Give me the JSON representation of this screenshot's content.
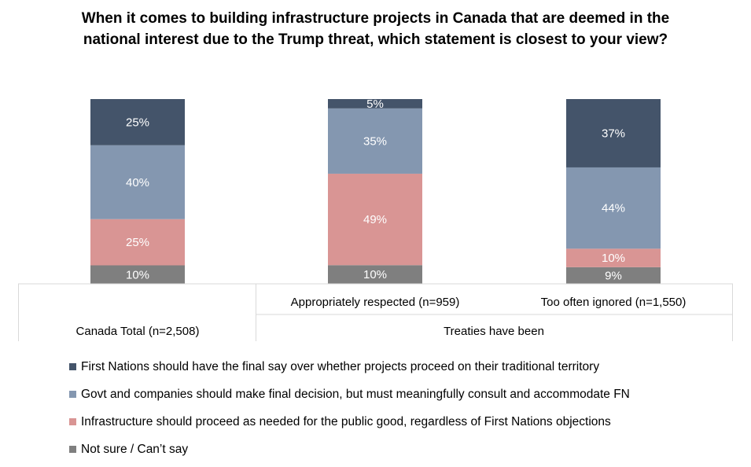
{
  "chart_data": {
    "type": "bar",
    "stacked": true,
    "title": "When it comes to building infrastructure projects in Canada that are deemed in the national interest due to the Trump threat, which statement is closest to your view?",
    "categories": [
      "Canada Total (n=2,508)",
      "Appropriately respected (n=959)",
      "Too often ignored (n=1,550)"
    ],
    "group_label": "Treaties have been",
    "ylim": [
      0,
      100
    ],
    "grid": false,
    "legend_position": "bottom",
    "series": [
      {
        "name": "Not sure / Can’t say",
        "color": "#7f7f7f",
        "values": [
          10,
          10,
          9
        ],
        "labels": [
          "10%",
          "10%",
          "9%"
        ]
      },
      {
        "name": "Infrastructure should proceed as needed for the public good, regardless of First Nations objections",
        "color": "#d99594",
        "values": [
          25,
          49,
          10
        ],
        "labels": [
          "25%",
          "49%",
          "10%"
        ]
      },
      {
        "name": "Govt and companies should make final decision, but must meaningfully consult and accommodate FN",
        "color": "#8497b0",
        "values": [
          40,
          35,
          44
        ],
        "labels": [
          "40%",
          "35%",
          "44%"
        ]
      },
      {
        "name": "First Nations should have the final say over whether projects proceed on their traditional territory",
        "color": "#44546a",
        "values": [
          25,
          5,
          37
        ],
        "labels": [
          "25%",
          "5%",
          "37%"
        ]
      }
    ],
    "legend_order": [
      3,
      2,
      1,
      0
    ]
  }
}
